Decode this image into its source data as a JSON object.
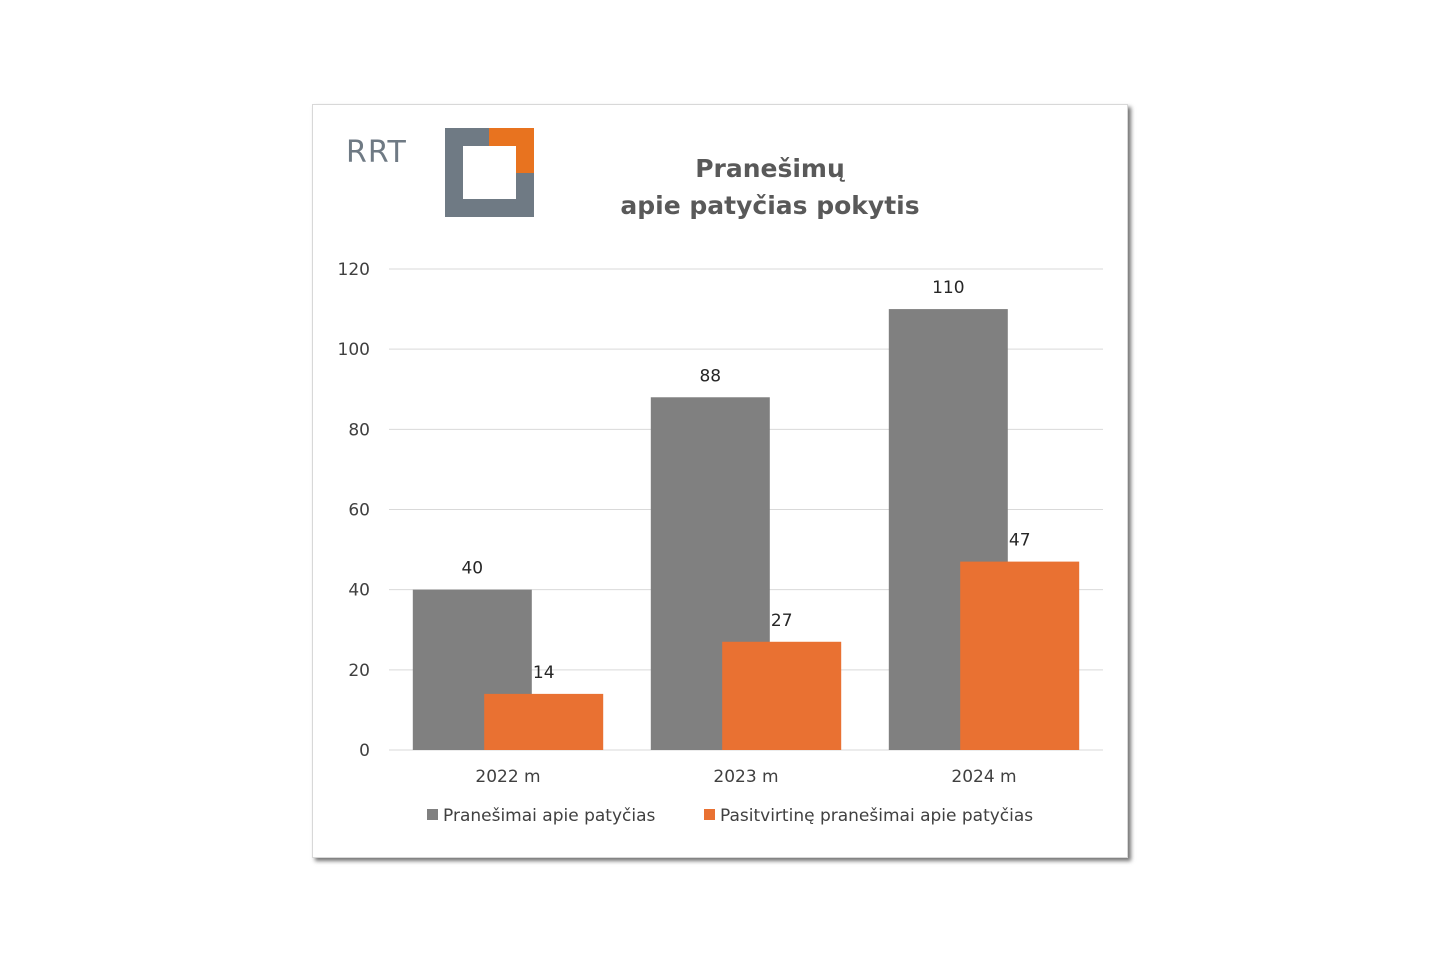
{
  "logo": {
    "text": "RRT",
    "name": "rrt-logo",
    "colors": {
      "gray": "#6f7a84",
      "orange": "#e8731f"
    }
  },
  "chart_data": {
    "type": "bar",
    "title_lines": [
      "Pranešimų",
      "apie patyčias pokytis"
    ],
    "categories": [
      "2022 m",
      "2023 m",
      "2024 m"
    ],
    "series": [
      {
        "name": "Pranešimai apie patyčias",
        "values": [
          40,
          88,
          110
        ],
        "color": "#808080"
      },
      {
        "name": "Pasitvirtinę pranešimai apie patyčias",
        "values": [
          14,
          27,
          47
        ],
        "color": "#e97132"
      }
    ],
    "ylim": [
      0,
      120
    ],
    "yticks": [
      0,
      20,
      40,
      60,
      80,
      100,
      120
    ],
    "grid": true,
    "gridColor": "#d9d9d9",
    "legend": "bottom",
    "data_labels": true
  }
}
